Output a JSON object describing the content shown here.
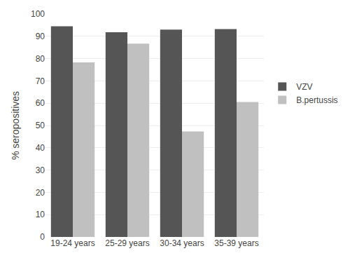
{
  "chart_data": {
    "type": "bar",
    "categories": [
      "19-24 years",
      "25-29 years",
      "30-34 years",
      "35-39 years"
    ],
    "series": [
      {
        "name": "VZV",
        "color": "#555555",
        "values": [
          94.5,
          91.8,
          93.0,
          93.2
        ]
      },
      {
        "name": "B.pertussis",
        "color": "#c0c0c0",
        "values": [
          78.3,
          86.7,
          47.3,
          60.5
        ]
      }
    ],
    "ylabel": "% seropositives",
    "ylim": [
      0,
      100
    ],
    "yticks": [
      0,
      10,
      20,
      30,
      40,
      50,
      60,
      70,
      80,
      90,
      100
    ],
    "grid": true,
    "legend": "right"
  }
}
